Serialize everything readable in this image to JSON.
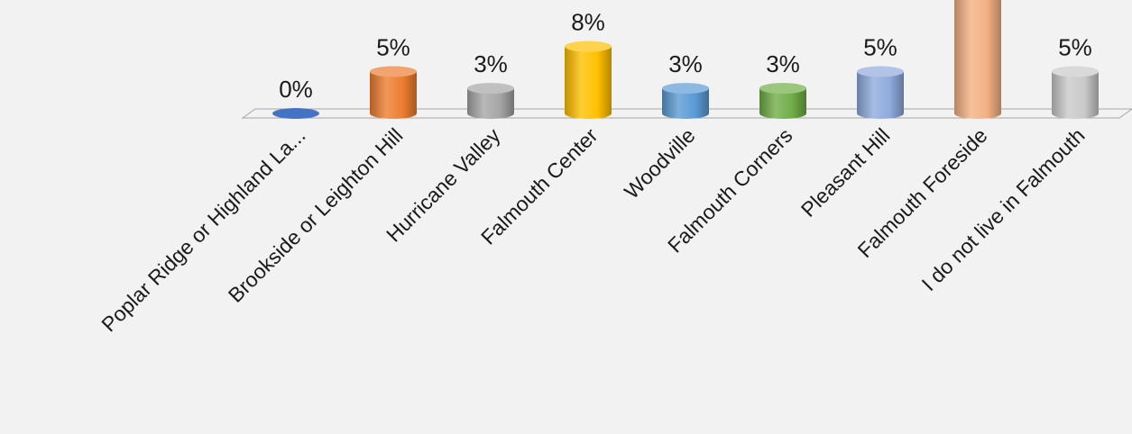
{
  "chart_data": {
    "type": "bar",
    "style": "3d-cylinder",
    "categories": [
      "Poplar Ridge or Highland La...",
      "Brookside or Leighton Hill",
      "Hurricane Valley",
      "Falmouth Center",
      "Woodville",
      "Falmouth Corners",
      "Pleasant Hill",
      "Falmouth Foreside",
      "I do not live in Falmouth"
    ],
    "values": [
      0,
      5,
      3,
      8,
      3,
      3,
      5,
      null,
      5
    ],
    "data_labels": [
      "0%",
      "5%",
      "3%",
      "8%",
      "3%",
      "3%",
      "5%",
      null,
      "5%"
    ],
    "colors": [
      "#4472c4",
      "#ed7d31",
      "#a5a5a5",
      "#ffc000",
      "#5b9bd5",
      "#70ad47",
      "#8faadc",
      "#f4b183",
      "#c9c9c9"
    ],
    "title": "",
    "xlabel": "",
    "ylabel": "",
    "unit": "%",
    "grid": false,
    "legend": "none"
  }
}
